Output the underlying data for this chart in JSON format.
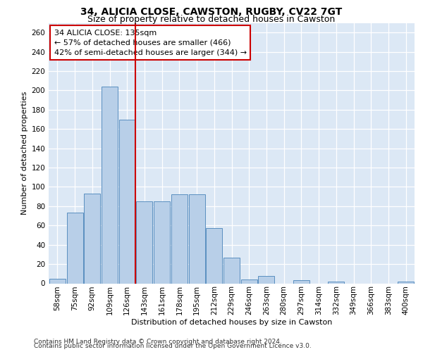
{
  "title1": "34, ALICIA CLOSE, CAWSTON, RUGBY, CV22 7GT",
  "title2": "Size of property relative to detached houses in Cawston",
  "xlabel": "Distribution of detached houses by size in Cawston",
  "ylabel": "Number of detached properties",
  "footer1": "Contains HM Land Registry data © Crown copyright and database right 2024.",
  "footer2": "Contains public sector information licensed under the Open Government Licence v3.0.",
  "annotation_line1": "34 ALICIA CLOSE: 135sqm",
  "annotation_line2": "← 57% of detached houses are smaller (466)",
  "annotation_line3": "42% of semi-detached houses are larger (344) →",
  "bar_heights": [
    5,
    73,
    93,
    204,
    170,
    85,
    85,
    92,
    92,
    57,
    27,
    4,
    8,
    0,
    3,
    0,
    2,
    0,
    0,
    0,
    2
  ],
  "categories": [
    "58sqm",
    "75sqm",
    "92sqm",
    "109sqm",
    "126sqm",
    "143sqm",
    "161sqm",
    "178sqm",
    "195sqm",
    "212sqm",
    "229sqm",
    "246sqm",
    "263sqm",
    "280sqm",
    "297sqm",
    "314sqm",
    "332sqm",
    "349sqm",
    "366sqm",
    "383sqm",
    "400sqm"
  ],
  "bar_color": "#b8cfe8",
  "bar_edge_color": "#5a8fc0",
  "vline_color": "#cc0000",
  "vline_pos": 4.47,
  "ylim": [
    0,
    270
  ],
  "yticks": [
    0,
    20,
    40,
    60,
    80,
    100,
    120,
    140,
    160,
    180,
    200,
    220,
    240,
    260
  ],
  "background_color": "#dce8f5",
  "grid_color": "#ffffff",
  "title1_fontsize": 10,
  "title2_fontsize": 9,
  "axis_label_fontsize": 8,
  "tick_fontsize": 7.5,
  "annot_fontsize": 8,
  "footer_fontsize": 6.5
}
